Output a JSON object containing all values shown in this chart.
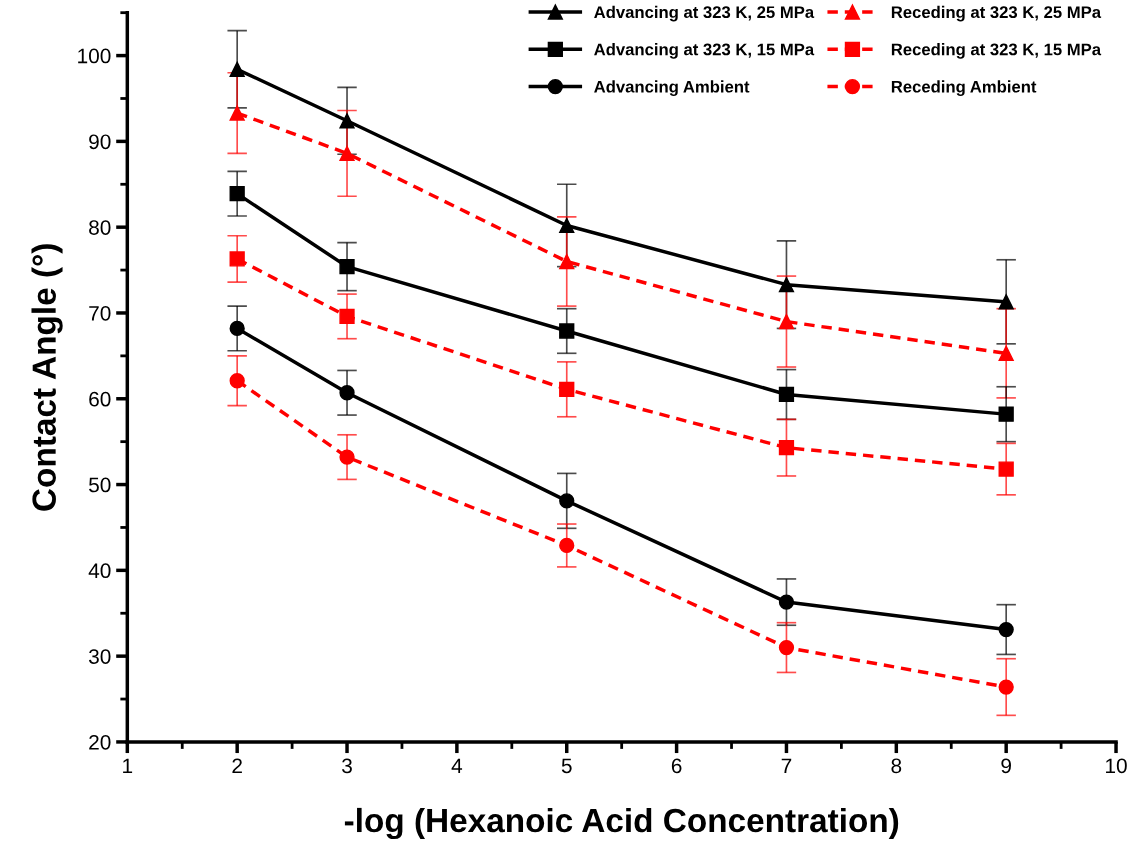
{
  "chart_data": {
    "type": "line",
    "xlabel": "-log (Hexanoic Acid Concentration)",
    "ylabel": "Contact Angle (°)",
    "x": [
      2,
      3,
      5,
      7,
      9
    ],
    "xlim": [
      1,
      10
    ],
    "xticks": [
      1,
      2,
      3,
      4,
      5,
      6,
      7,
      8,
      9,
      10
    ],
    "ylim": [
      20,
      105
    ],
    "yticks": [
      20,
      30,
      40,
      50,
      60,
      70,
      80,
      90,
      100
    ],
    "grid": false,
    "legend": "top right",
    "series": [
      {
        "name": "Advancing at 323 K, 25 MPa",
        "color": "#000000",
        "marker": "triangle",
        "line_style": "solid",
        "values": [
          98.4,
          92.4,
          80.2,
          73.3,
          71.3
        ],
        "errors": [
          4.5,
          3.9,
          4.8,
          5.1,
          4.9
        ]
      },
      {
        "name": "Receding at 323 K, 25 MPa",
        "color": "#ff0000",
        "marker": "triangle",
        "line_style": "dashed",
        "values": [
          93.3,
          88.6,
          76.0,
          69.0,
          65.3
        ],
        "errors": [
          4.7,
          5.0,
          5.2,
          5.3,
          5.2
        ]
      },
      {
        "name": "Advancing at 323 K, 15 MPa",
        "color": "#000000",
        "marker": "square",
        "line_style": "solid",
        "values": [
          83.9,
          75.4,
          67.9,
          60.5,
          58.2
        ],
        "errors": [
          2.6,
          2.8,
          2.6,
          2.9,
          3.2
        ]
      },
      {
        "name": "Receding at 323 K, 15 MPa",
        "color": "#ff0000",
        "marker": "square",
        "line_style": "dashed",
        "values": [
          76.3,
          69.6,
          61.1,
          54.3,
          51.8
        ],
        "errors": [
          2.7,
          2.6,
          3.2,
          3.3,
          3.0
        ]
      },
      {
        "name": "Advancing Ambient",
        "color": "#000000",
        "marker": "circle",
        "line_style": "solid",
        "values": [
          68.2,
          60.7,
          48.1,
          36.3,
          33.1
        ],
        "errors": [
          2.6,
          2.6,
          3.2,
          2.7,
          2.9
        ]
      },
      {
        "name": "Receding Ambient",
        "color": "#ff0000",
        "marker": "circle",
        "line_style": "dashed",
        "values": [
          62.1,
          53.2,
          42.9,
          31.0,
          26.4
        ],
        "errors": [
          2.9,
          2.6,
          2.5,
          2.9,
          3.3
        ]
      }
    ]
  }
}
